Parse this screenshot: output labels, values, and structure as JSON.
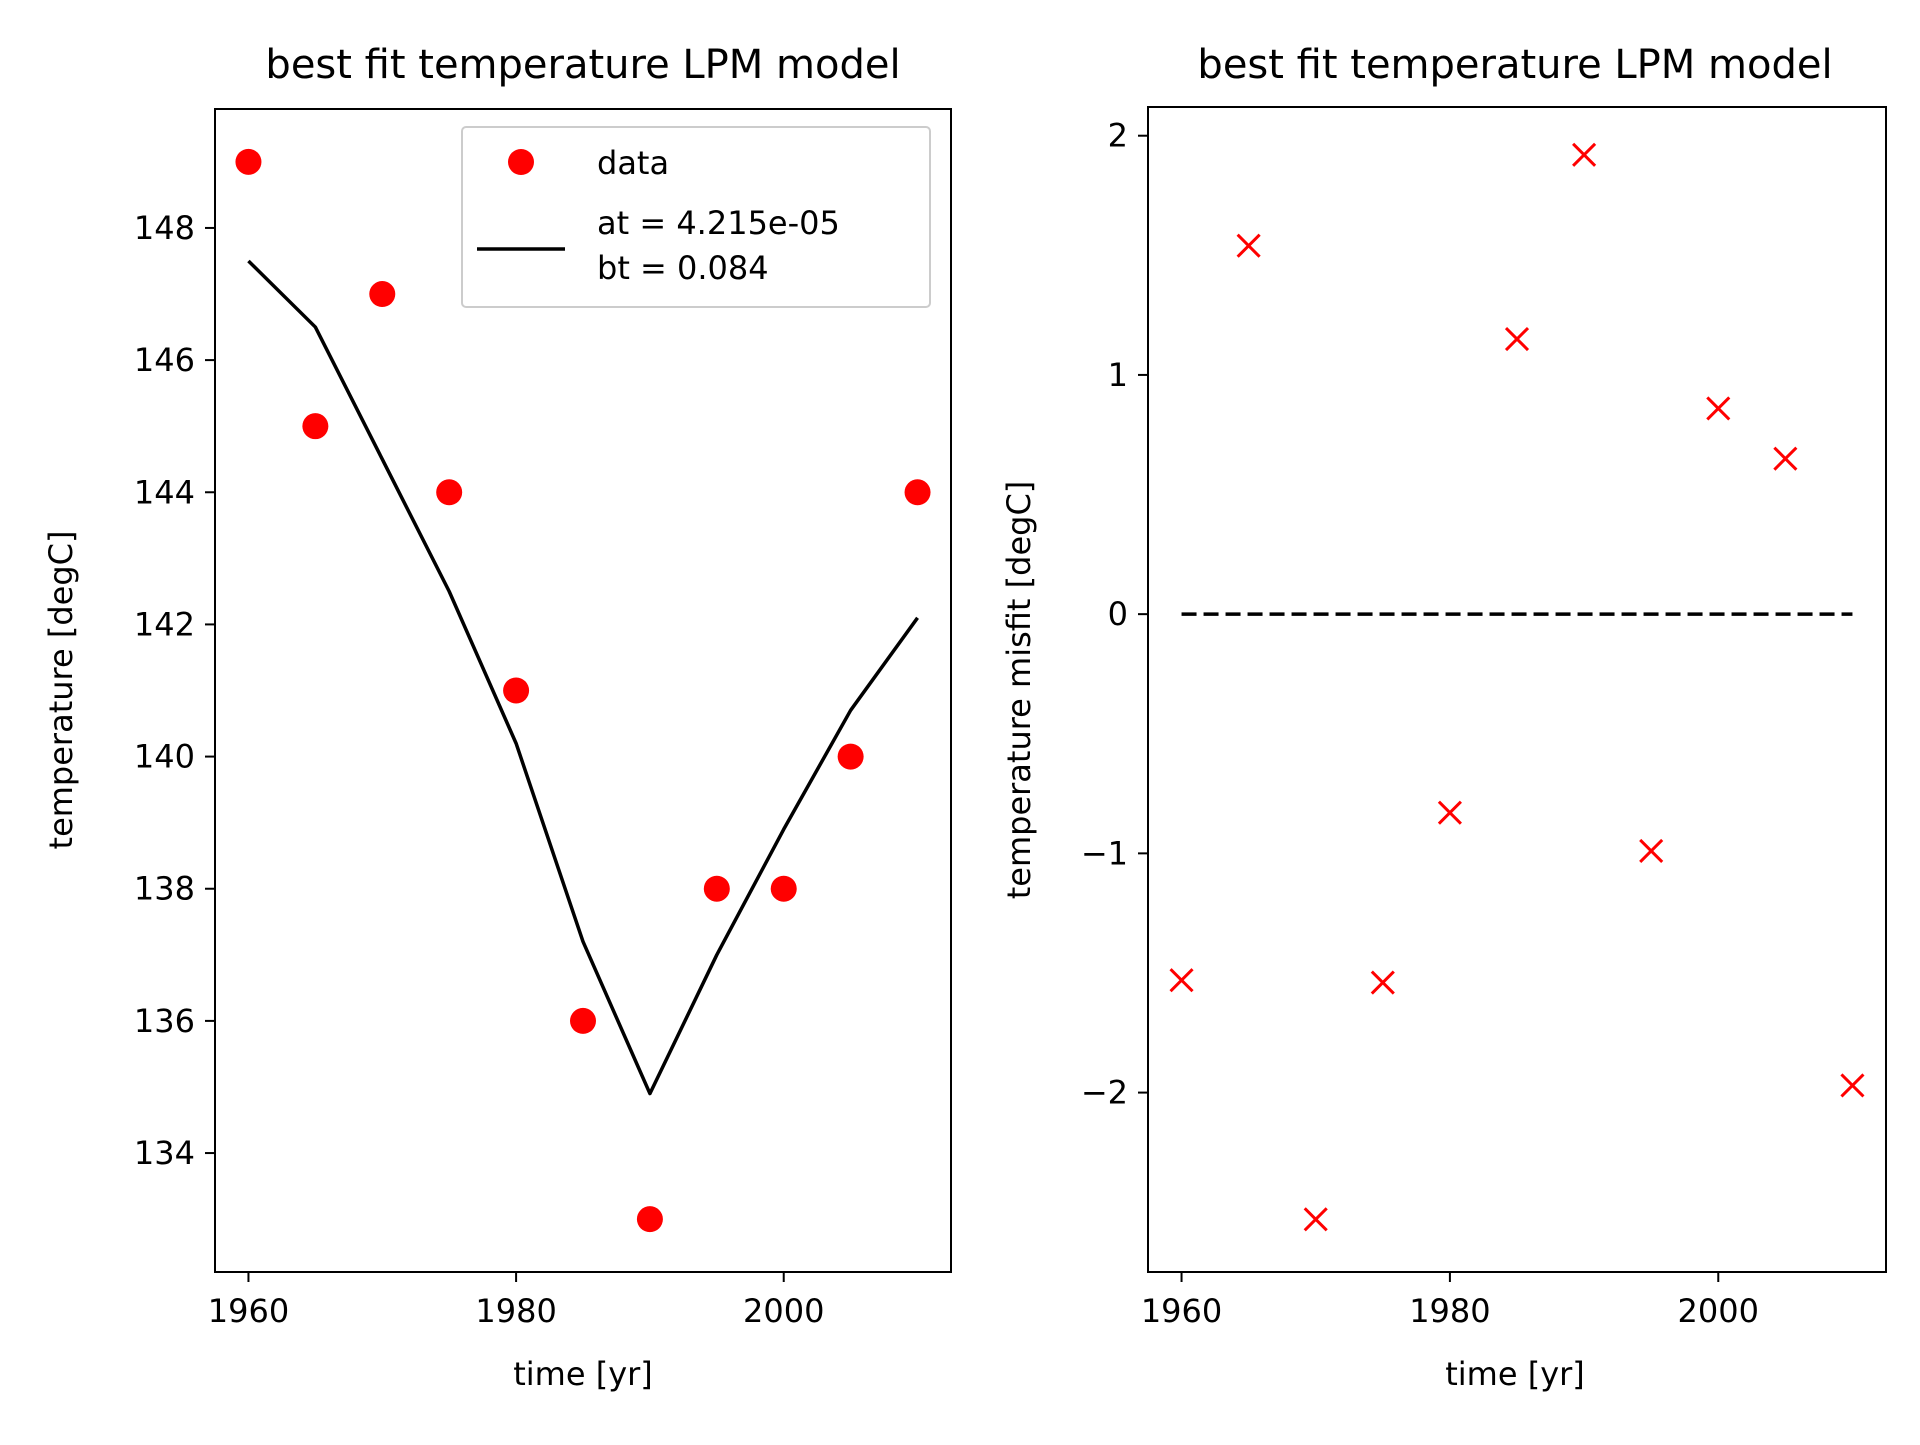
{
  "chart_data": [
    {
      "type": "line",
      "title": "best fit temperature LPM model",
      "xlabel": "time [yr]",
      "ylabel": "temperature [degC]",
      "xlim": [
        1957.5,
        2012.5
      ],
      "ylim": [
        132.2,
        149.8
      ],
      "xticks": [
        1960,
        1980,
        2000
      ],
      "yticks": [
        134,
        136,
        138,
        140,
        142,
        144,
        146,
        148
      ],
      "xtick_labels": [
        "1960",
        "1980",
        "2000"
      ],
      "ytick_labels": [
        "134",
        "136",
        "138",
        "140",
        "142",
        "144",
        "146",
        "148"
      ],
      "legend_position": "top-right",
      "legend": [
        "data",
        "at = 4.215e-05",
        "bt = 0.084"
      ],
      "series": [
        {
          "name": "data",
          "kind": "markers",
          "marker": "circle",
          "color": "#ff0000",
          "x": [
            1960,
            1965,
            1970,
            1975,
            1980,
            1985,
            1990,
            1995,
            2000,
            2005,
            2010
          ],
          "y": [
            149,
            145,
            147,
            144,
            141,
            136,
            133,
            138,
            138,
            140,
            144
          ]
        },
        {
          "name": "at = 4.215e-05\nbt = 0.084",
          "kind": "line",
          "color": "#000000",
          "x": [
            1960,
            1965,
            1970,
            1975,
            1980,
            1985,
            1990,
            1995,
            2000,
            2005,
            2010
          ],
          "y": [
            147.5,
            146.5,
            144.5,
            142.5,
            140.2,
            137.2,
            134.9,
            137.0,
            138.9,
            140.7,
            142.1
          ]
        }
      ]
    },
    {
      "type": "scatter",
      "title": "best fit temperature LPM model",
      "xlabel": "time [yr]",
      "ylabel": "temperature misfit [degC]",
      "xlim": [
        1957.5,
        2012.5
      ],
      "ylim": [
        -2.75,
        2.12
      ],
      "xticks": [
        1960,
        1980,
        2000
      ],
      "yticks": [
        -2,
        -1,
        0,
        1,
        2
      ],
      "xtick_labels": [
        "1960",
        "1980",
        "2000"
      ],
      "ytick_labels": [
        "−2",
        "−1",
        "0",
        "1",
        "2"
      ],
      "series": [
        {
          "kind": "markers",
          "marker": "x",
          "color": "#ff0000",
          "x": [
            1960,
            1965,
            1970,
            1975,
            1980,
            1985,
            1990,
            1995,
            2000,
            2005,
            2010
          ],
          "y": [
            -1.53,
            1.54,
            -2.53,
            -1.54,
            -0.83,
            1.15,
            1.92,
            -0.99,
            0.86,
            0.65,
            -1.97
          ]
        },
        {
          "kind": "dashed-line",
          "color": "#000000",
          "x": [
            1960,
            2010
          ],
          "y": [
            0,
            0
          ]
        }
      ]
    }
  ]
}
